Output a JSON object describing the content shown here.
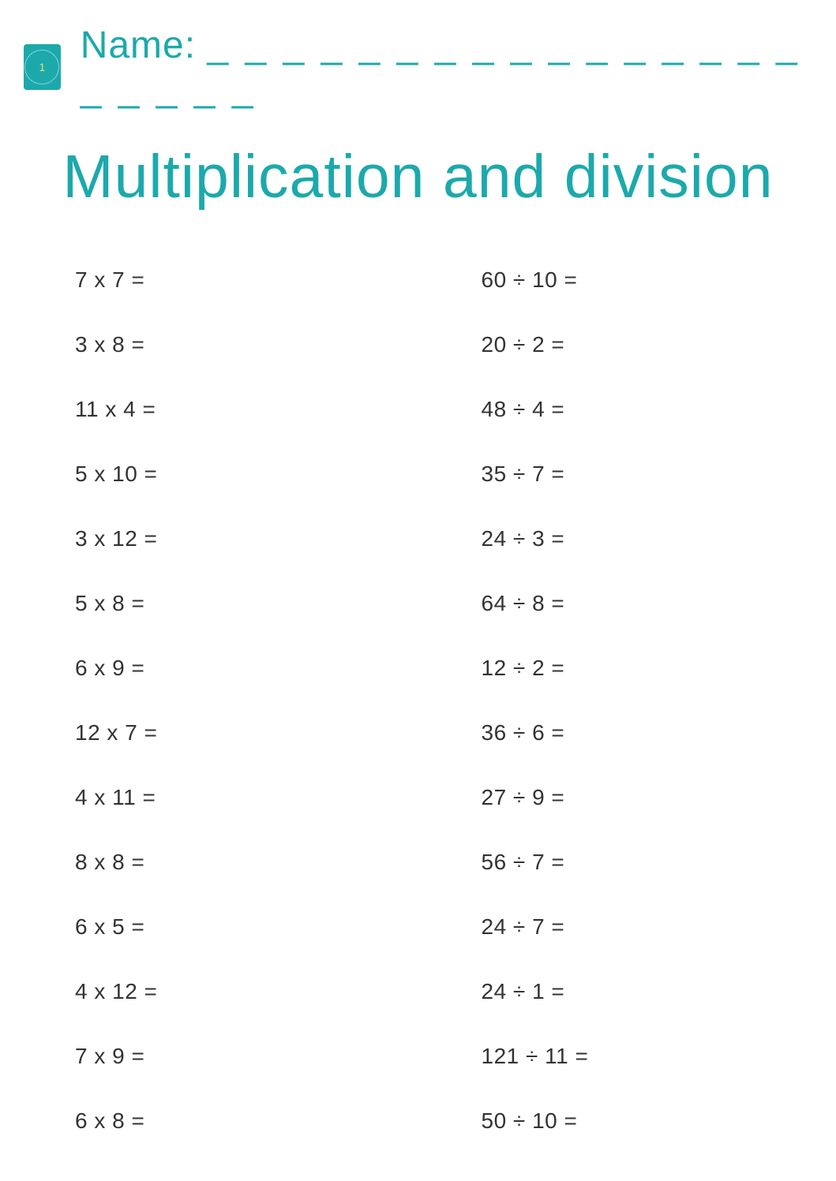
{
  "header": {
    "name_label": "Name:",
    "name_blank": "_ _ _ _ _ _ _ _ _ _ _ _ _ _ _ _ _ _ _ _ _",
    "logo_text": "1"
  },
  "title": "Multiplication and division",
  "colors": {
    "accent": "#1ca9ac",
    "text": "#333333",
    "background": "#ffffff",
    "logo_accent": "#f5d76e"
  },
  "typography": {
    "title_fontsize": 77,
    "name_fontsize": 48,
    "problem_fontsize": 28,
    "font_family": "Futura"
  },
  "multiplication": [
    "7 x 7 =",
    "3 x 8 =",
    "11 x 4 =",
    "5 x 10 =",
    "3 x 12 =",
    "5 x 8 =",
    "6 x 9 =",
    "12 x 7 =",
    "4 x 11 =",
    "8 x 8 =",
    "6 x 5 =",
    "4 x 12 =",
    "7 x 9 =",
    "6 x 8 ="
  ],
  "division": [
    "60 ÷ 10 =",
    "20 ÷ 2 =",
    "48 ÷ 4 =",
    "35 ÷ 7 =",
    "24 ÷ 3 =",
    "64 ÷ 8 =",
    "12 ÷ 2 =",
    "36 ÷ 6 =",
    "27 ÷ 9 =",
    "56 ÷ 7 =",
    "24 ÷ 7 =",
    "24 ÷ 1 =",
    "121 ÷ 11 =",
    "50 ÷ 10 ="
  ]
}
